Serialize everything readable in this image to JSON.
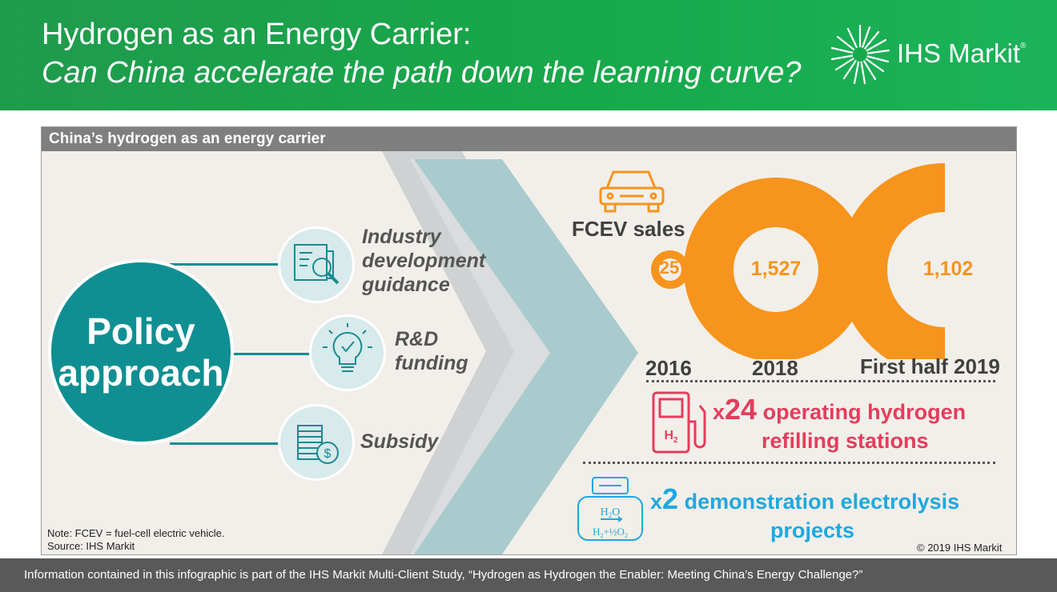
{
  "header": {
    "title": "Hydrogen as an Energy Carrier:",
    "subtitle": "Can China accelerate the path down the learning curve?",
    "logo_text": "IHS Markit",
    "logo_mark": "®"
  },
  "panel": {
    "title": "China’s hydrogen as an energy carrier",
    "policy": {
      "line1": "Policy",
      "line2": "approach"
    },
    "items": [
      {
        "icon": "document-magnifier-icon",
        "lines": [
          "Industry",
          "development",
          "guidance"
        ]
      },
      {
        "icon": "lightbulb-check-icon",
        "lines": [
          "R&D",
          "funding"
        ]
      },
      {
        "icon": "coins-dollar-icon",
        "lines": [
          "Subsidy"
        ]
      }
    ],
    "fcev": {
      "label": "FCEV sales",
      "icon": "car-icon",
      "values": [
        "25",
        "1,527",
        "1,102"
      ],
      "years": [
        "2016",
        "2018",
        "First half 2019"
      ]
    },
    "stations": {
      "prefix": "x",
      "multiplier": "24",
      "line1": "operating hydrogen",
      "line2": "refilling stations",
      "icon": "hydrogen-pump-icon",
      "icon_text": "H"
    },
    "electrolysis": {
      "prefix": "x",
      "multiplier": "2",
      "line1": "demonstration electrolysis",
      "line2": "projects",
      "icon": "electrolyzer-icon",
      "icon_top": "H",
      "icon_bottom": "H"
    },
    "note": "Note: FCEV = fuel-cell electric vehicle.",
    "source": "Source: IHS Markit",
    "copyright": "© 2019 IHS Markit"
  },
  "footer": {
    "text": "Information contained in this infographic is part of the IHS Markit Multi-Client Study, “Hydrogen as Hydrogen the Enabler: Meeting China’s Energy Challenge?”"
  },
  "colors": {
    "header_green": "#17a84a",
    "teal": "#108f92",
    "orange": "#f7941d",
    "red": "#e43d5c",
    "blue": "#1fa8e0",
    "panel_bg": "#f2efea",
    "footer_gray": "#595959"
  }
}
